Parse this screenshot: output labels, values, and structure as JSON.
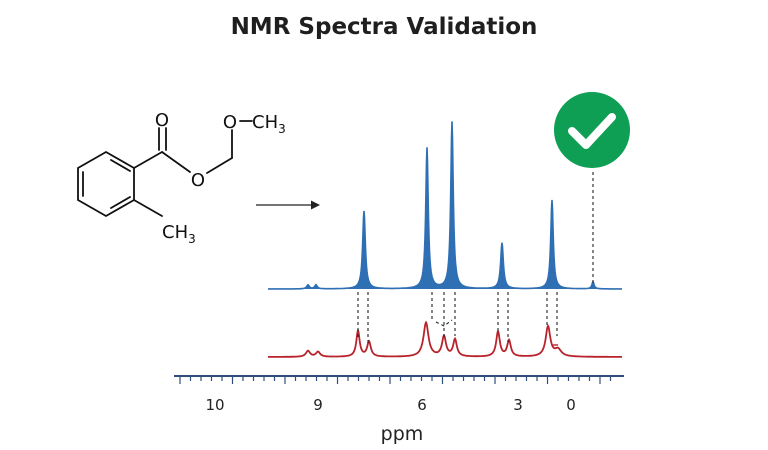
{
  "title": "NMR Spectra Validation",
  "molecule": {
    "atoms": {
      "carbonyl_o": "O",
      "ester_o": "O",
      "ether_o": "O",
      "methyl_top": "CH",
      "methyl_top_sub": "3",
      "methyl_ring": "CH",
      "methyl_ring_sub": "3"
    }
  },
  "axis": {
    "label": "ppm",
    "tick_labels": [
      "10",
      "9",
      "6",
      "3",
      "0"
    ]
  },
  "validation": {
    "status": "valid",
    "badge_color": "#0e9f55",
    "icon": "checkmark-icon"
  },
  "spectra": {
    "predicted_color": "#2f6fb4",
    "experimental_color": "#b8232b"
  }
}
